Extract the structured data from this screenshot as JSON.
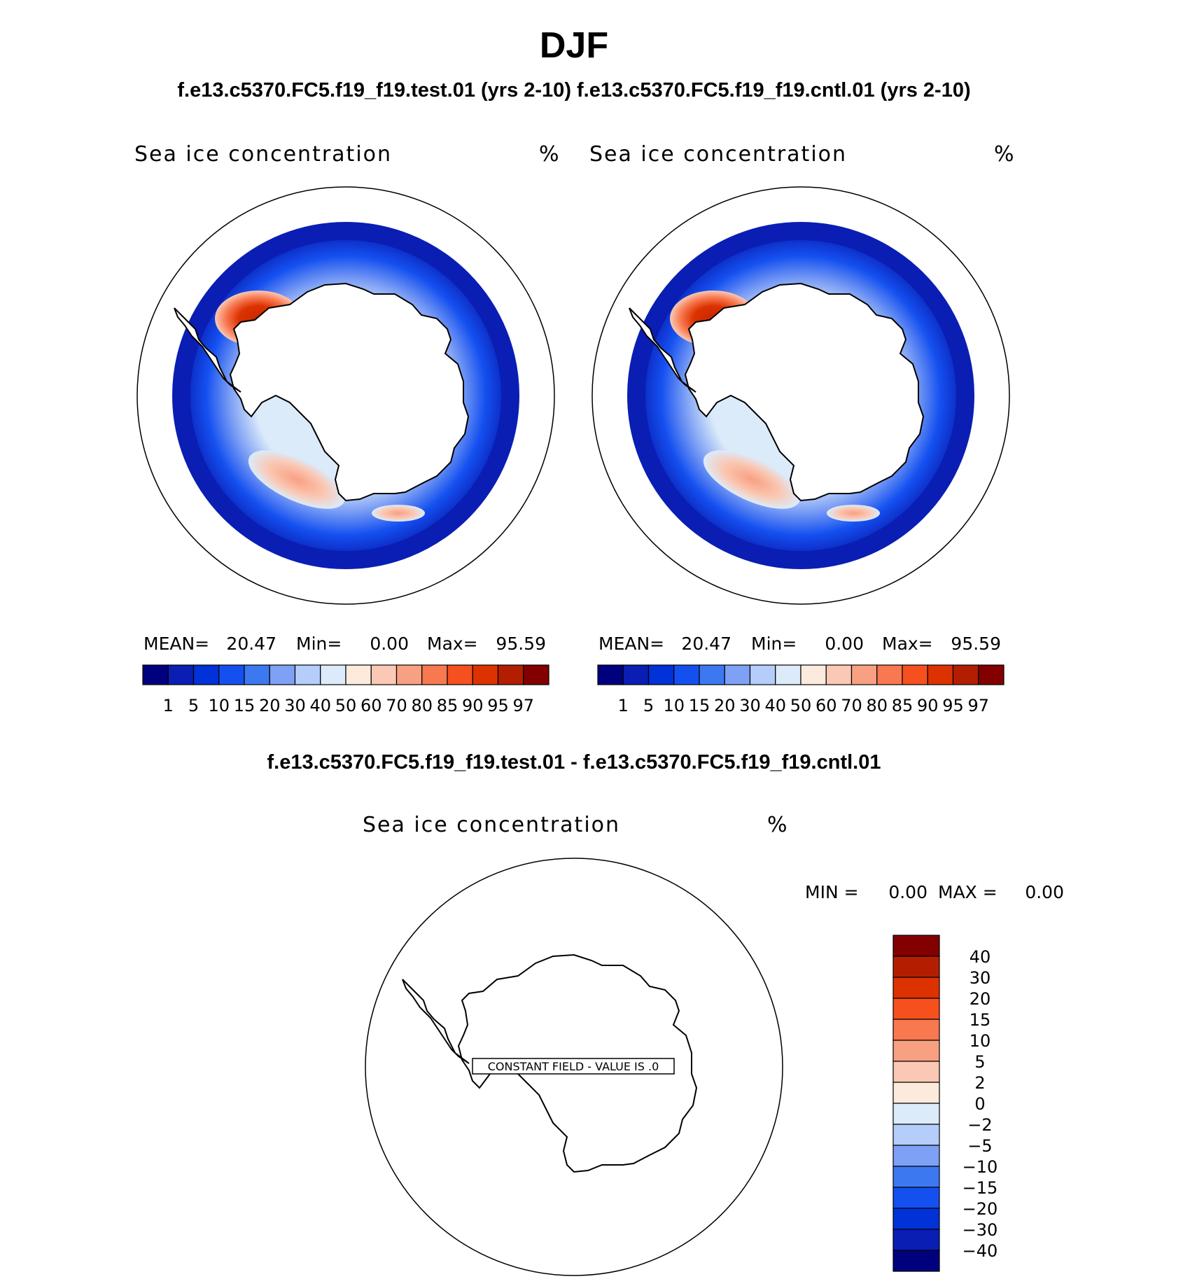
{
  "title": "DJF",
  "subtitle": "f.e13.c5370.FC5.f19_f19.test.01 (yrs 2-10) f.e13.c5370.FC5.f19_f19.cntl.01 (yrs 2-10)",
  "diff_title": "f.e13.c5370.FC5.f19_f19.test.01 - f.e13.c5370.FC5.f19_f19.cntl.01",
  "chart_data": [
    {
      "type": "heatmap",
      "panel": "test",
      "variable_label": "Sea ice concentration",
      "units": "%",
      "stats": {
        "mean_label": "MEAN=",
        "mean": "20.47",
        "min_label": "Min=",
        "min": "0.00",
        "max_label": "Max=",
        "max": "95.59"
      },
      "colorbar": {
        "orientation": "horizontal",
        "levels": [
          "1",
          "5",
          "10",
          "15",
          "20",
          "30",
          "40",
          "50",
          "60",
          "70",
          "80",
          "85",
          "90",
          "95",
          "97"
        ],
        "colors": [
          "#00007f",
          "#0a1eb4",
          "#0032d7",
          "#1450f0",
          "#3c78f0",
          "#7ea0f5",
          "#b4cdfa",
          "#dcebfa",
          "#fcebdc",
          "#fac8b4",
          "#f8a082",
          "#f87850",
          "#f5501e",
          "#dc3200",
          "#b41e00",
          "#820000"
        ]
      }
    },
    {
      "type": "heatmap",
      "panel": "control",
      "variable_label": "Sea ice concentration",
      "units": "%",
      "stats": {
        "mean_label": "MEAN=",
        "mean": "20.47",
        "min_label": "Min=",
        "min": "0.00",
        "max_label": "Max=",
        "max": "95.59"
      },
      "colorbar": {
        "orientation": "horizontal",
        "levels": [
          "1",
          "5",
          "10",
          "15",
          "20",
          "30",
          "40",
          "50",
          "60",
          "70",
          "80",
          "85",
          "90",
          "95",
          "97"
        ],
        "colors": [
          "#00007f",
          "#0a1eb4",
          "#0032d7",
          "#1450f0",
          "#3c78f0",
          "#7ea0f5",
          "#b4cdfa",
          "#dcebfa",
          "#fcebdc",
          "#fac8b4",
          "#f8a082",
          "#f87850",
          "#f5501e",
          "#dc3200",
          "#b41e00",
          "#820000"
        ]
      }
    },
    {
      "type": "heatmap",
      "panel": "difference",
      "variable_label": "Sea ice concentration",
      "units": "%",
      "stats": {
        "min_label": "MIN =",
        "min": "0.00",
        "max_label": "MAX =",
        "max": "0.00"
      },
      "constant_field_label": "CONSTANT FIELD - VALUE IS .0",
      "colorbar": {
        "orientation": "vertical",
        "levels": [
          "40",
          "30",
          "20",
          "15",
          "10",
          "5",
          "2",
          "0",
          "−2",
          "−5",
          "−10",
          "−15",
          "−20",
          "−30",
          "−40"
        ],
        "colors": [
          "#820000",
          "#b41e00",
          "#dc3200",
          "#f5501e",
          "#f87850",
          "#f8a082",
          "#fac8b4",
          "#fcebdc",
          "#dcebfa",
          "#b4cdfa",
          "#7ea0f5",
          "#3c78f0",
          "#1450f0",
          "#0032d7",
          "#0a1eb4",
          "#00007f"
        ]
      }
    }
  ]
}
